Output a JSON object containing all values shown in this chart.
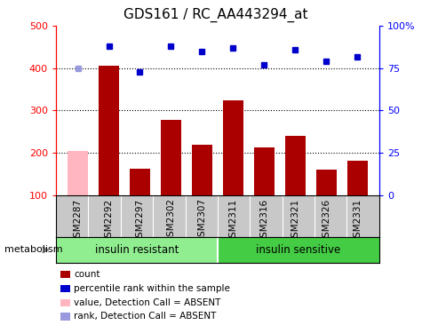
{
  "title": "GDS161 / RC_AA443294_at",
  "samples": [
    "GSM2287",
    "GSM2292",
    "GSM2297",
    "GSM2302",
    "GSM2307",
    "GSM2311",
    "GSM2316",
    "GSM2321",
    "GSM2326",
    "GSM2331"
  ],
  "bar_values": [
    205,
    405,
    163,
    278,
    220,
    323,
    213,
    240,
    160,
    182
  ],
  "bar_absent": [
    true,
    false,
    false,
    false,
    false,
    false,
    false,
    false,
    false,
    false
  ],
  "rank_values": [
    75,
    88,
    73,
    88,
    85,
    87,
    77,
    86,
    79,
    82
  ],
  "rank_absent": [
    true,
    false,
    false,
    false,
    false,
    false,
    false,
    false,
    false,
    false
  ],
  "bar_color": "#aa0000",
  "bar_absent_color": "#ffb6c1",
  "rank_color": "#0000cc",
  "rank_absent_color": "#9999dd",
  "ylim_left": [
    100,
    500
  ],
  "ylim_right": [
    0,
    100
  ],
  "yticks_left": [
    100,
    200,
    300,
    400,
    500
  ],
  "ytick_labels_right": [
    "0",
    "25",
    "50",
    "75",
    "100%"
  ],
  "grid_values": [
    200,
    300,
    400
  ],
  "group1_label": "insulin resistant",
  "group2_label": "insulin sensitive",
  "pathway_label": "metabolism",
  "legend_items": [
    {
      "label": "count",
      "color": "#aa0000"
    },
    {
      "label": "percentile rank within the sample",
      "color": "#0000cc"
    },
    {
      "label": "value, Detection Call = ABSENT",
      "color": "#ffb6c1"
    },
    {
      "label": "rank, Detection Call = ABSENT",
      "color": "#9999dd"
    }
  ],
  "group1_color": "#90ee90",
  "group2_color": "#44cc44",
  "label_bg_color": "#c8c8c8"
}
